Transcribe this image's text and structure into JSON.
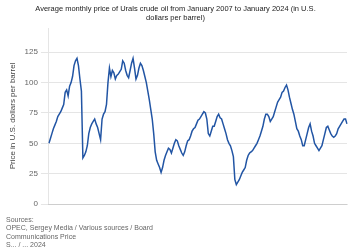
{
  "chart_data": {
    "type": "line",
    "title": "Average monthly price of Urals crude oil from January 2007 to January 2024 (in U.S.\ndollars per barrel)",
    "y_label": "Price in U.S. dollars per barrel",
    "source": "Sources:\nOPEC, Sergey Media / Various sources / Board\nCommunications Price\nS... / ... 2024",
    "categories": [
      null,
      null,
      null,
      null,
      null,
      null,
      null,
      null,
      null,
      null,
      null,
      null,
      null,
      null,
      null,
      null,
      null,
      null,
      null,
      null,
      null,
      null,
      null,
      null,
      null,
      null,
      null,
      null,
      null,
      null,
      null,
      null,
      null,
      null,
      null,
      null,
      null,
      null,
      null,
      null,
      null,
      null,
      null,
      null,
      null,
      null,
      null,
      null,
      null,
      null,
      null,
      null,
      null,
      null,
      null,
      null,
      null,
      null,
      null,
      null,
      null,
      null,
      null,
      null,
      null,
      null,
      null,
      null,
      null,
      null,
      null,
      null,
      null,
      null,
      null,
      null,
      null,
      null,
      null,
      null,
      null,
      null,
      null,
      null,
      null,
      null,
      null,
      null,
      null,
      null,
      null,
      null,
      null,
      null,
      null,
      null,
      null,
      null,
      null,
      null,
      null,
      null,
      null,
      null,
      null,
      null,
      null,
      null,
      null,
      null,
      null,
      null,
      null,
      null,
      null,
      null,
      null,
      null,
      null,
      null,
      null,
      null,
      null,
      null,
      null,
      null,
      null,
      null,
      null,
      null,
      null,
      null,
      null,
      null,
      null,
      null,
      null,
      null,
      null,
      null,
      null,
      null,
      null,
      null,
      null,
      null,
      null,
      null,
      null,
      null,
      null,
      null,
      null,
      null,
      null,
      null,
      null,
      null,
      null,
      null,
      null,
      null,
      null,
      null,
      null,
      null,
      null,
      null,
      null,
      null,
      null,
      null,
      null,
      null,
      null,
      null,
      null,
      null,
      null,
      null,
      null,
      null,
      null,
      null,
      null,
      null,
      null,
      null,
      null,
      null,
      null,
      null,
      null,
      null,
      null,
      null,
      null,
      null,
      null,
      null,
      null,
      null,
      null
    ],
    "values": [
      50,
      54,
      58,
      62,
      65,
      68,
      72,
      74,
      76,
      79,
      82,
      92,
      94,
      89,
      97,
      100,
      105,
      114,
      118,
      120,
      114,
      103,
      93,
      38,
      40,
      43,
      48,
      58,
      63,
      66,
      68,
      70,
      66,
      63,
      58,
      53,
      70,
      74,
      76,
      82,
      100,
      112,
      105,
      110,
      108,
      103,
      106,
      107,
      109,
      111,
      118,
      116,
      110,
      106,
      104,
      110,
      116,
      120,
      112,
      103,
      106,
      112,
      116,
      114,
      110,
      105,
      100,
      93,
      86,
      78,
      70,
      58,
      43,
      36,
      33,
      30,
      26,
      30,
      36,
      40,
      43,
      46,
      45,
      42,
      46,
      50,
      53,
      52,
      48,
      45,
      42,
      40,
      43,
      48,
      52,
      53,
      56,
      60,
      62,
      63,
      66,
      69,
      70,
      72,
      74,
      76,
      75,
      70,
      58,
      56,
      60,
      64,
      64,
      68,
      72,
      74,
      71,
      70,
      66,
      62,
      58,
      53,
      50,
      48,
      44,
      39,
      20,
      16,
      18,
      20,
      23,
      26,
      28,
      30,
      36,
      40,
      42,
      43,
      44,
      46,
      48,
      50,
      53,
      56,
      60,
      64,
      70,
      74,
      74,
      72,
      68,
      70,
      72,
      76,
      80,
      84,
      86,
      88,
      92,
      93,
      96,
      98,
      94,
      88,
      83,
      78,
      74,
      68,
      62,
      60,
      56,
      53,
      48,
      48,
      53,
      58,
      63,
      66,
      60,
      56,
      50,
      48,
      46,
      44,
      46,
      48,
      53,
      58,
      63,
      64,
      61,
      58,
      56,
      55,
      56,
      58,
      62,
      64,
      66,
      68,
      70,
      70,
      66
    ],
    "color": "#2255a4",
    "ylim": [
      0,
      145
    ],
    "yticks": [
      0,
      25,
      50,
      75,
      100,
      125
    ],
    "grid": true,
    "tick_labels": "y"
  }
}
